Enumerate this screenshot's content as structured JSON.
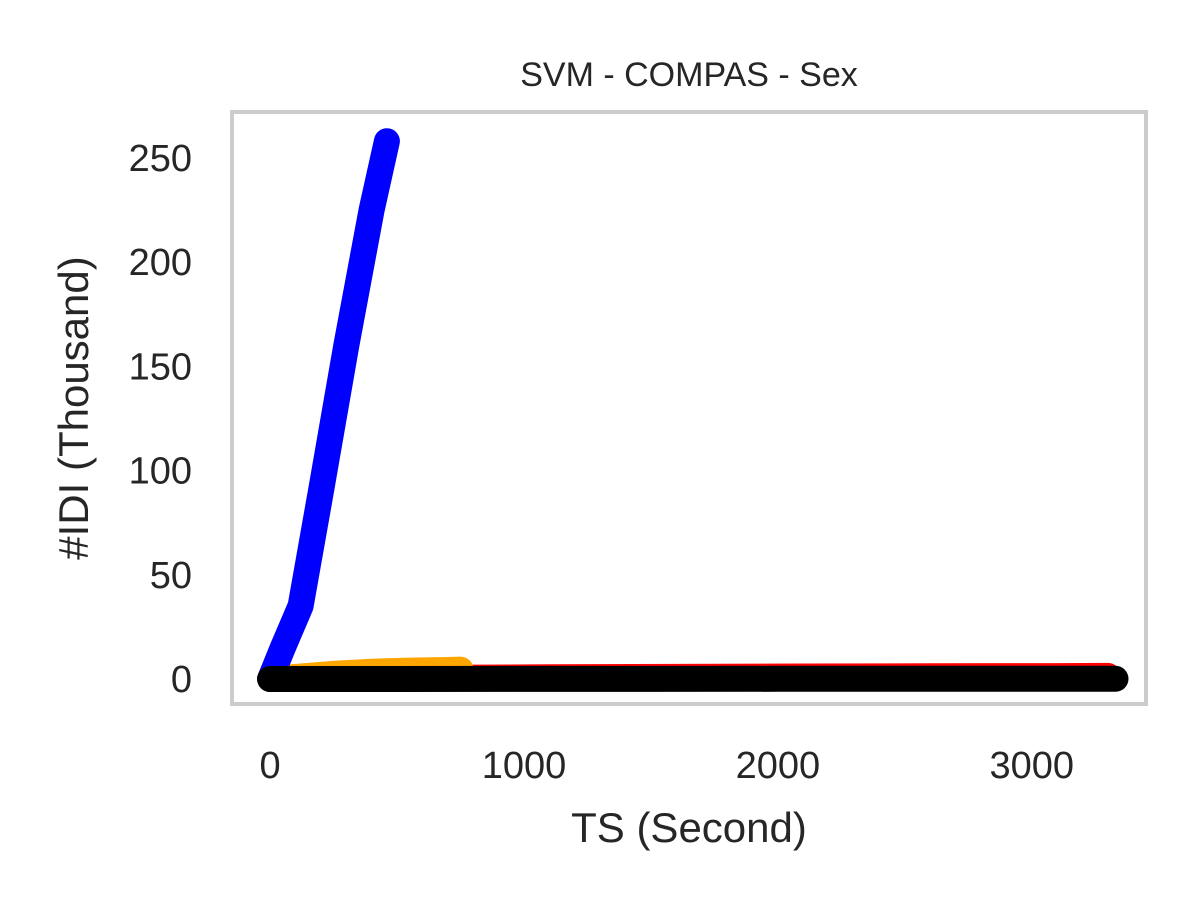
{
  "chart_data": {
    "type": "line",
    "title": "SVM - COMPAS - Sex",
    "xlabel": "TS (Second)",
    "ylabel": "#IDI (Thousand)",
    "xlim": [
      -150,
      3450
    ],
    "ylim": [
      -12,
      272
    ],
    "xticks": [
      0,
      1000,
      2000,
      3000
    ],
    "xtick_labels": [
      "0",
      "1000",
      "2000",
      "3000"
    ],
    "yticks": [
      0,
      50,
      100,
      150,
      200,
      250
    ],
    "ytick_labels": [
      "0",
      "50",
      "100",
      "150",
      "200",
      "250"
    ],
    "grid": false,
    "legend": "none",
    "frame_color": "#cccccc",
    "series": [
      {
        "color": "#ff0000",
        "x": [
          0,
          300,
          700,
          1100,
          1600,
          2100,
          2600,
          3100,
          3300
        ],
        "y": [
          0,
          0.3,
          0.6,
          0.8,
          1.0,
          1.2,
          1.3,
          1.4,
          1.5
        ]
      },
      {
        "color": "#ffa500",
        "x": [
          0,
          100,
          250,
          400,
          550,
          700,
          750
        ],
        "y": [
          0,
          1.0,
          2.5,
          3.5,
          4.0,
          4.3,
          4.5
        ]
      },
      {
        "color": "#0000ff",
        "x": [
          0,
          50,
          120,
          200,
          300,
          400,
          460
        ],
        "y": [
          0,
          15,
          35,
          90,
          160,
          225,
          258
        ]
      },
      {
        "color": "#000000",
        "x": [
          0,
          500,
          1000,
          1500,
          2000,
          2500,
          3000,
          3330
        ],
        "y": [
          0,
          0,
          0.05,
          0.05,
          0.1,
          0.1,
          0.1,
          0.1
        ]
      }
    ]
  }
}
